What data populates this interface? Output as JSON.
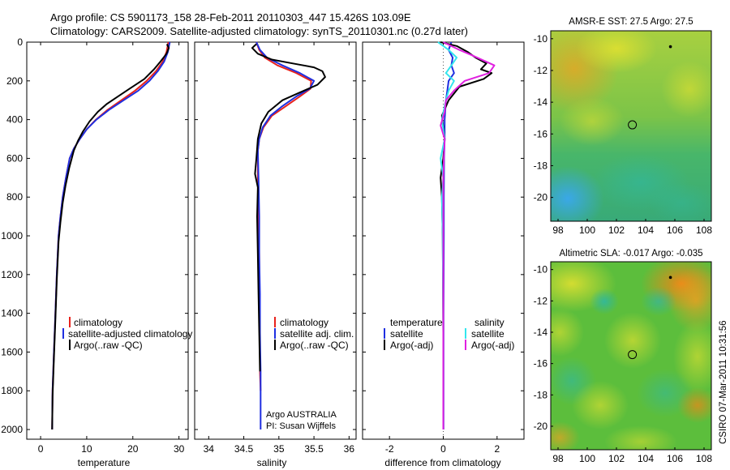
{
  "header": {
    "title_line1": "Argo profile: CS 5901173_158 28-Feb-2011 20110303_447 15.426S 103.09E",
    "title_line2": "Climatology: CARS2009. Satellite-adjusted climatology: synTS_20110301.nc (0.27d later)"
  },
  "side_label": "CSIRO 07-Mar-2011 10:31:56",
  "colors": {
    "climatology": "#e8221c",
    "satellite": "#1f2fe0",
    "argo": "#000000",
    "satellite_salinity": "#33e6ee",
    "argo_adj_salinity": "#e020e0"
  },
  "chart_data": [
    {
      "id": "temperature",
      "type": "line",
      "xlabel": "temperature",
      "ylabel": "",
      "xlim": [
        -3,
        32
      ],
      "ylim": [
        2050,
        0
      ],
      "xticks": [
        "0",
        "10",
        "20",
        "30"
      ],
      "xtick_values": [
        0,
        10,
        20,
        30
      ],
      "yticks": [
        "0",
        "200",
        "400",
        "600",
        "800",
        "1000",
        "1200",
        "1400",
        "1600",
        "1800",
        "2000"
      ],
      "ytick_values": [
        0,
        200,
        400,
        600,
        800,
        1000,
        1200,
        1400,
        1600,
        1800,
        2000
      ],
      "legend": [
        "climatology",
        "satellite-adjusted climatology",
        "Argo(..raw -QC)"
      ],
      "legend_position": "lower-right",
      "series": [
        {
          "name": "climatology",
          "color": "climatology",
          "x": [
            27.7,
            27.3,
            26.5,
            25,
            23,
            20.5,
            17.5,
            14.5,
            12,
            10,
            8.5,
            7.2,
            6.3,
            5.5,
            4.8,
            4.3,
            3.9,
            3.5,
            3.2,
            2.9,
            2.6,
            2.5
          ],
          "y": [
            0,
            50,
            100,
            150,
            200,
            250,
            300,
            350,
            400,
            450,
            500,
            550,
            600,
            700,
            800,
            900,
            1000,
            1200,
            1400,
            1600,
            1800,
            2000
          ]
        },
        {
          "name": "satellite",
          "color": "satellite",
          "x": [
            28,
            27.6,
            26.8,
            25.4,
            23.6,
            21.2,
            18,
            14.8,
            12.1,
            10,
            8.5,
            7.2,
            6.3,
            5.5,
            4.8,
            4.3,
            3.9,
            3.5,
            3.2,
            2.9,
            2.6,
            2.5
          ],
          "y": [
            0,
            50,
            100,
            150,
            200,
            250,
            300,
            350,
            400,
            450,
            500,
            550,
            600,
            700,
            800,
            900,
            1000,
            1200,
            1400,
            1600,
            1800,
            2000
          ]
        },
        {
          "name": "Argo(..raw -QC)",
          "color": "argo",
          "x": [
            27.4,
            27.8,
            27.3,
            26,
            24.6,
            22.5,
            19.3,
            16.8,
            14.3,
            12.4,
            10.6,
            9.2,
            8.1,
            7.2,
            6.2,
            5.4,
            4.8,
            4.3,
            3.9,
            3.5,
            3.2,
            2.9,
            2.6,
            2.5
          ],
          "y": [
            10,
            30,
            60,
            100,
            140,
            190,
            240,
            280,
            320,
            360,
            410,
            460,
            510,
            560,
            650,
            740,
            830,
            930,
            1030,
            1230,
            1430,
            1630,
            1830,
            2000
          ]
        }
      ]
    },
    {
      "id": "salinity",
      "type": "line",
      "xlabel": "salinity",
      "ylabel": "",
      "xlim": [
        33.8,
        36.1
      ],
      "ylim": [
        2050,
        0
      ],
      "xticks": [
        "34",
        "34.5",
        "35",
        "35.5",
        "36"
      ],
      "xtick_values": [
        34,
        34.5,
        35,
        35.5,
        36
      ],
      "legend": [
        "climatology",
        "satellite adj. clim.",
        "Argo(..raw -QC)"
      ],
      "legend_position": "lower-right",
      "annotation": [
        "Argo AUSTRALIA",
        "PI: Susan Wijffels"
      ],
      "series": [
        {
          "name": "climatology",
          "color": "climatology",
          "x": [
            34.68,
            34.72,
            34.8,
            34.98,
            35.25,
            35.46,
            35.45,
            35.3,
            35.1,
            34.9,
            34.78,
            34.72,
            34.7,
            34.7,
            34.71,
            34.72,
            34.72,
            34.73,
            34.73,
            34.74
          ],
          "y": [
            0,
            40,
            80,
            120,
            160,
            200,
            240,
            280,
            330,
            380,
            440,
            500,
            560,
            700,
            900,
            1100,
            1300,
            1500,
            1700,
            1800
          ]
        },
        {
          "name": "satellite",
          "color": "satellite",
          "x": [
            34.68,
            34.73,
            34.83,
            35.05,
            35.3,
            35.5,
            35.44,
            35.25,
            35.05,
            34.88,
            34.77,
            34.72,
            34.7,
            34.71,
            34.72,
            34.72,
            34.73,
            34.73,
            34.74,
            34.74
          ],
          "y": [
            0,
            40,
            80,
            120,
            160,
            200,
            240,
            280,
            330,
            380,
            440,
            500,
            560,
            700,
            900,
            1100,
            1300,
            1500,
            1700,
            2000
          ]
        },
        {
          "name": "Argo(..raw -QC)",
          "color": "argo",
          "x": [
            34.68,
            34.62,
            34.7,
            34.9,
            35.2,
            35.5,
            35.62,
            35.66,
            35.55,
            35.3,
            35.05,
            34.85,
            34.75,
            34.7,
            34.68,
            34.66,
            34.7,
            34.69,
            34.7,
            34.71,
            34.72,
            34.73
          ],
          "y": [
            10,
            30,
            60,
            90,
            110,
            130,
            150,
            180,
            220,
            260,
            300,
            360,
            420,
            500,
            600,
            680,
            750,
            900,
            1100,
            1300,
            1500,
            1700
          ]
        }
      ]
    },
    {
      "id": "difference",
      "type": "line",
      "xlabel": "difference from climatology",
      "ylabel": "",
      "xlim": [
        -3,
        3
      ],
      "ylim": [
        2050,
        0
      ],
      "xticks": [
        "-2",
        "0",
        "2"
      ],
      "xtick_values": [
        -2,
        0,
        2
      ],
      "legend_headers": [
        "temperature",
        "salinity"
      ],
      "legend": [
        "satellite",
        "Argo(-adj)",
        "satellite",
        "Argo(-adj)"
      ],
      "legend_position": "lower-center",
      "series": [
        {
          "name": "temperature satellite",
          "color": "satellite",
          "x": [
            0.3,
            0.2,
            0.35,
            0.3,
            0.4,
            0.2,
            0.15,
            0.1,
            0.05,
            0.05,
            0.03,
            0.02,
            0.02,
            0.01,
            0.01,
            0.01
          ],
          "y": [
            0,
            40,
            80,
            120,
            160,
            200,
            250,
            300,
            400,
            500,
            600,
            800,
            1000,
            1400,
            1800,
            2000
          ]
        },
        {
          "name": "temperature Argo(-adj)",
          "color": "argo",
          "x": [
            -0.1,
            0.5,
            0.9,
            1.2,
            1.6,
            1.4,
            1.8,
            1.5,
            0.6,
            0.2,
            -0.05,
            0.05,
            0,
            -0.1,
            -0.05,
            -0.02,
            0,
            0
          ],
          "y": [
            0,
            20,
            50,
            80,
            110,
            140,
            160,
            190,
            230,
            300,
            380,
            500,
            600,
            700,
            800,
            1000,
            1500,
            2000
          ]
        },
        {
          "name": "salinity satellite",
          "color": "satellite_salinity",
          "x": [
            -0.2,
            0.2,
            0.5,
            0.3,
            0.1,
            0.4,
            0.2,
            0.1,
            -0.05,
            0.05,
            -0.1,
            0,
            -0.05,
            -0.02,
            0,
            0
          ],
          "y": [
            0,
            40,
            80,
            120,
            160,
            200,
            250,
            300,
            400,
            500,
            600,
            700,
            800,
            1000,
            1500,
            2000
          ]
        },
        {
          "name": "salinity Argo(-adj)",
          "color": "argo_adj_salinity",
          "x": [
            0,
            0.6,
            1.1,
            1.9,
            1.7,
            0.8,
            0.4,
            0.1,
            0.05,
            -0.1,
            0.05,
            0.02,
            0,
            0,
            0,
            0
          ],
          "y": [
            0,
            40,
            70,
            120,
            160,
            200,
            250,
            300,
            360,
            430,
            500,
            600,
            700,
            900,
            1400,
            2000
          ]
        }
      ]
    },
    {
      "id": "sst_map",
      "type": "heatmap",
      "title": "AMSR-E SST: 27.5 Argo: 27.5",
      "xlim": [
        97.5,
        108.5
      ],
      "ylim": [
        -21.5,
        -9.5
      ],
      "xticks": [
        "98",
        "100",
        "102",
        "104",
        "106",
        "108"
      ],
      "xtick_values": [
        98,
        100,
        102,
        104,
        106,
        108
      ],
      "yticks": [
        "-10",
        "-12",
        "-14",
        "-16",
        "-18",
        "-20"
      ],
      "ytick_values": [
        -10,
        -12,
        -14,
        -16,
        -18,
        -20
      ],
      "profile_position": {
        "lon": 103.09,
        "lat": -15.426
      },
      "previous_position": {
        "lon": 105.7,
        "lat": -10.5
      }
    },
    {
      "id": "sla_map",
      "type": "heatmap",
      "title": "Altimetric SLA: -0.017 Argo: -0.035",
      "xlim": [
        97.5,
        108.5
      ],
      "ylim": [
        -21.5,
        -9.5
      ],
      "xticks": [
        "98",
        "100",
        "102",
        "104",
        "106",
        "108"
      ],
      "xtick_values": [
        98,
        100,
        102,
        104,
        106,
        108
      ],
      "yticks": [
        "-10",
        "-12",
        "-14",
        "-16",
        "-18",
        "-20"
      ],
      "ytick_values": [
        -10,
        -12,
        -14,
        -16,
        -18,
        -20
      ],
      "profile_position": {
        "lon": 103.09,
        "lat": -15.426
      },
      "previous_position": {
        "lon": 105.7,
        "lat": -10.5
      }
    }
  ]
}
